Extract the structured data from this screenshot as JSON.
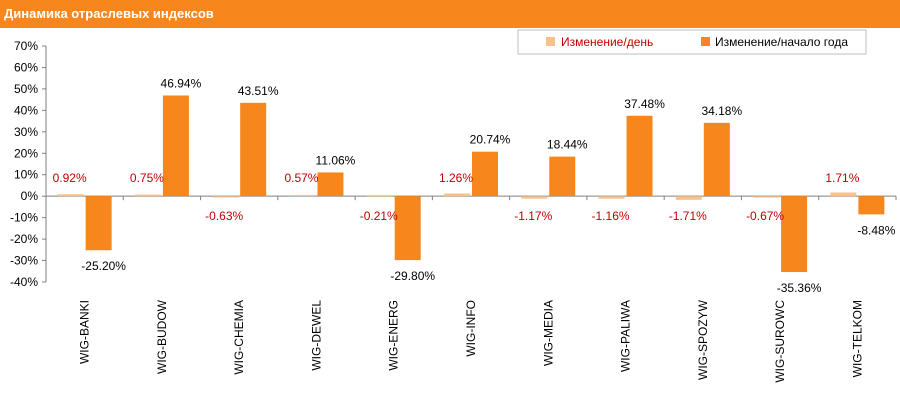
{
  "header": {
    "title": "Динамика отраслевых индексов"
  },
  "colors": {
    "header": "#f7871c",
    "daily": "#f9c08a",
    "ytd": "#f7871c",
    "daily_label": "#c00000",
    "ytd_label": "#000000"
  },
  "chart_data": {
    "type": "bar",
    "title": "",
    "xlabel": "",
    "ylabel": "",
    "ylim": [
      -40,
      70
    ],
    "yticks": [
      -40,
      -30,
      -20,
      -10,
      0,
      10,
      20,
      30,
      40,
      50,
      60,
      70
    ],
    "y_unit": "%",
    "legend_position": "top-right",
    "categories": [
      "WIG-BANKI",
      "WIG-BUDOW",
      "WIG-CHEMIA",
      "WIG-DEWEL",
      "WIG-ENERG",
      "WIG-INFO",
      "WIG-MEDIA",
      "WIG-PALIWA",
      "WIG-SPOZYW",
      "WIG-SUROWC",
      "WIG-TELKOM"
    ],
    "series": [
      {
        "name": "Изменение/день",
        "values": [
          0.92,
          0.75,
          -0.63,
          0.57,
          -0.21,
          1.26,
          -1.17,
          -1.16,
          -1.71,
          -0.67,
          1.71
        ],
        "labels": [
          "0.92%",
          "0.75%",
          "-0.63%",
          "0.57%",
          "-0.21%",
          "1.26%",
          "-1.17%",
          "-1.16%",
          "-1.71%",
          "-0.67%",
          "1.71%"
        ]
      },
      {
        "name": "Изменение/начало года",
        "values": [
          -25.2,
          46.94,
          43.51,
          11.06,
          -29.8,
          20.74,
          18.44,
          37.48,
          34.18,
          -35.36,
          -8.48
        ],
        "labels": [
          "-25.20%",
          "46.94%",
          "43.51%",
          "11.06%",
          "-29.80%",
          "20.74%",
          "18.44%",
          "37.48%",
          "34.18%",
          "-35.36%",
          "-8.48%"
        ]
      }
    ]
  }
}
